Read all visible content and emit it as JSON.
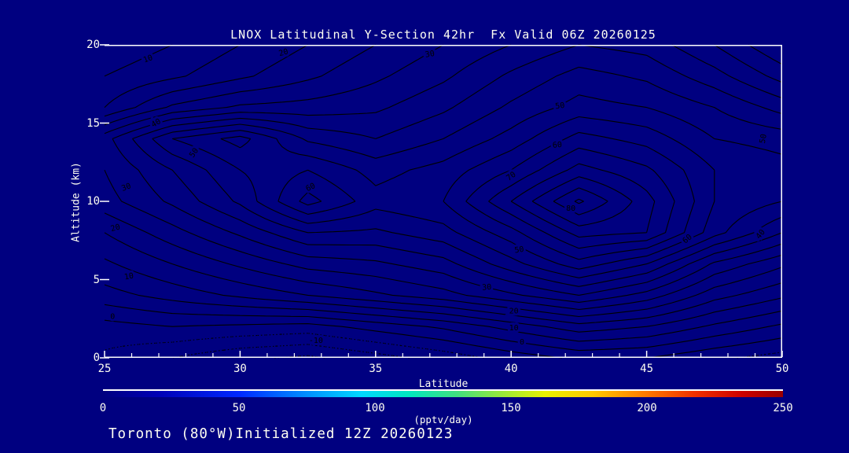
{
  "colors": {
    "background": "#000080",
    "frame": "#ffffff",
    "contour": "#000000",
    "text": "#fffff2"
  },
  "footer": {
    "text": "Toronto (80°W)Initialized 12Z 20260123"
  },
  "chart_data": {
    "type": "heatmap",
    "representation": "contour-cross-section",
    "title": "LNOX Latitudinal Y-Section 42hr  Fx Valid 06Z 20260125",
    "xlabel": "Latitude",
    "ylabel": "Altitude (km)",
    "xlim": [
      25,
      50
    ],
    "ylim": [
      0,
      20
    ],
    "x_ticks": [
      25,
      30,
      35,
      40,
      45,
      50
    ],
    "x_minor_tick_step": 1,
    "y_ticks": [
      0,
      5,
      10,
      15,
      20
    ],
    "units": "pptv/day",
    "contour_interval": 5,
    "contour_levels_labeled": [
      -10,
      0,
      10,
      20,
      30,
      40,
      50,
      60,
      70,
      80
    ],
    "negative_contour_style": "dotted",
    "grid": {
      "lats": [
        25,
        27.5,
        30,
        32.5,
        35,
        37.5,
        40,
        42.5,
        45,
        47.5,
        50
      ],
      "alts": [
        0,
        2,
        4,
        6,
        8,
        10,
        12,
        14,
        16,
        18,
        20
      ],
      "values": [
        [
          -6,
          -10,
          -14,
          -16,
          -12,
          -8,
          -3,
          1,
          0,
          -4,
          -7
        ],
        [
          -2,
          0,
          -1,
          -2,
          2,
          6,
          12,
          18,
          15,
          9,
          4
        ],
        [
          8,
          12,
          16,
          20,
          24,
          28,
          34,
          40,
          33,
          22,
          16
        ],
        [
          14,
          20,
          26,
          32,
          34,
          38,
          48,
          58,
          50,
          34,
          26
        ],
        [
          20,
          28,
          36,
          45,
          44,
          48,
          58,
          72,
          70,
          52,
          40
        ],
        [
          28,
          36,
          46,
          62,
          52,
          55,
          70,
          86,
          72,
          55,
          50
        ],
        [
          30,
          40,
          50,
          55,
          48,
          52,
          60,
          72,
          66,
          55,
          52
        ],
        [
          33,
          50,
          57,
          44,
          40,
          45,
          52,
          62,
          58,
          50,
          48
        ],
        [
          15,
          26,
          31,
          32,
          34,
          39,
          46,
          52,
          50,
          45,
          38
        ],
        [
          10,
          14,
          19,
          24,
          29,
          34,
          41,
          47,
          44,
          37,
          28
        ],
        [
          6,
          10,
          15,
          20,
          25,
          30,
          35,
          40,
          38,
          30,
          20
        ]
      ]
    },
    "contour_labels": [
      {
        "text": "10",
        "lat": 26.6,
        "alt": 19.1,
        "angle": -20
      },
      {
        "text": "20",
        "lat": 31.6,
        "alt": 19.5,
        "angle": -15
      },
      {
        "text": "30",
        "lat": 37.0,
        "alt": 19.4,
        "angle": -10
      },
      {
        "text": "40",
        "lat": 26.9,
        "alt": 15.0,
        "angle": -30
      },
      {
        "text": "50",
        "lat": 28.3,
        "alt": 13.1,
        "angle": -55
      },
      {
        "text": "30",
        "lat": 25.8,
        "alt": 10.9,
        "angle": -20
      },
      {
        "text": "20",
        "lat": 25.4,
        "alt": 8.3,
        "angle": -15
      },
      {
        "text": "10",
        "lat": 25.9,
        "alt": 5.2,
        "angle": -10
      },
      {
        "text": "0",
        "lat": 25.3,
        "alt": 2.65,
        "angle": 0
      },
      {
        "text": "-10",
        "lat": 32.8,
        "alt": 1.1,
        "angle": 0
      },
      {
        "text": "60",
        "lat": 32.6,
        "alt": 10.9,
        "angle": -25
      },
      {
        "text": "50",
        "lat": 41.8,
        "alt": 16.1,
        "angle": -8
      },
      {
        "text": "60",
        "lat": 41.7,
        "alt": 13.6,
        "angle": -5
      },
      {
        "text": "70",
        "lat": 40.0,
        "alt": 11.6,
        "angle": -35
      },
      {
        "text": "80",
        "lat": 42.2,
        "alt": 9.55,
        "angle": 0
      },
      {
        "text": "60",
        "lat": 46.5,
        "alt": 7.6,
        "angle": -40
      },
      {
        "text": "50",
        "lat": 40.3,
        "alt": 6.9,
        "angle": -8
      },
      {
        "text": "30",
        "lat": 39.1,
        "alt": 4.5,
        "angle": -5
      },
      {
        "text": "20",
        "lat": 40.1,
        "alt": 3.0,
        "angle": 0
      },
      {
        "text": "10",
        "lat": 40.1,
        "alt": 1.9,
        "angle": 0
      },
      {
        "text": "0",
        "lat": 40.4,
        "alt": 1.0,
        "angle": 0
      },
      {
        "text": "40",
        "lat": 49.2,
        "alt": 7.9,
        "angle": -50
      },
      {
        "text": "50",
        "lat": 49.3,
        "alt": 14.0,
        "angle": -80
      }
    ],
    "colorbar": {
      "min": 0,
      "max": 250,
      "ticks": [
        0,
        50,
        100,
        150,
        200,
        250
      ],
      "label": "(pptv/day)",
      "stops": [
        {
          "pos": 0.0,
          "color": "#000080"
        },
        {
          "pos": 0.08,
          "color": "#0000b4"
        },
        {
          "pos": 0.2,
          "color": "#0028ff"
        },
        {
          "pos": 0.3,
          "color": "#0090ff"
        },
        {
          "pos": 0.38,
          "color": "#00d8ff"
        },
        {
          "pos": 0.45,
          "color": "#00e8c0"
        },
        {
          "pos": 0.52,
          "color": "#40e080"
        },
        {
          "pos": 0.58,
          "color": "#90e840"
        },
        {
          "pos": 0.65,
          "color": "#e8f000"
        },
        {
          "pos": 0.72,
          "color": "#ffc800"
        },
        {
          "pos": 0.8,
          "color": "#ff7800"
        },
        {
          "pos": 0.87,
          "color": "#f03000"
        },
        {
          "pos": 0.94,
          "color": "#cc0000"
        },
        {
          "pos": 1.0,
          "color": "#990000"
        }
      ]
    }
  }
}
